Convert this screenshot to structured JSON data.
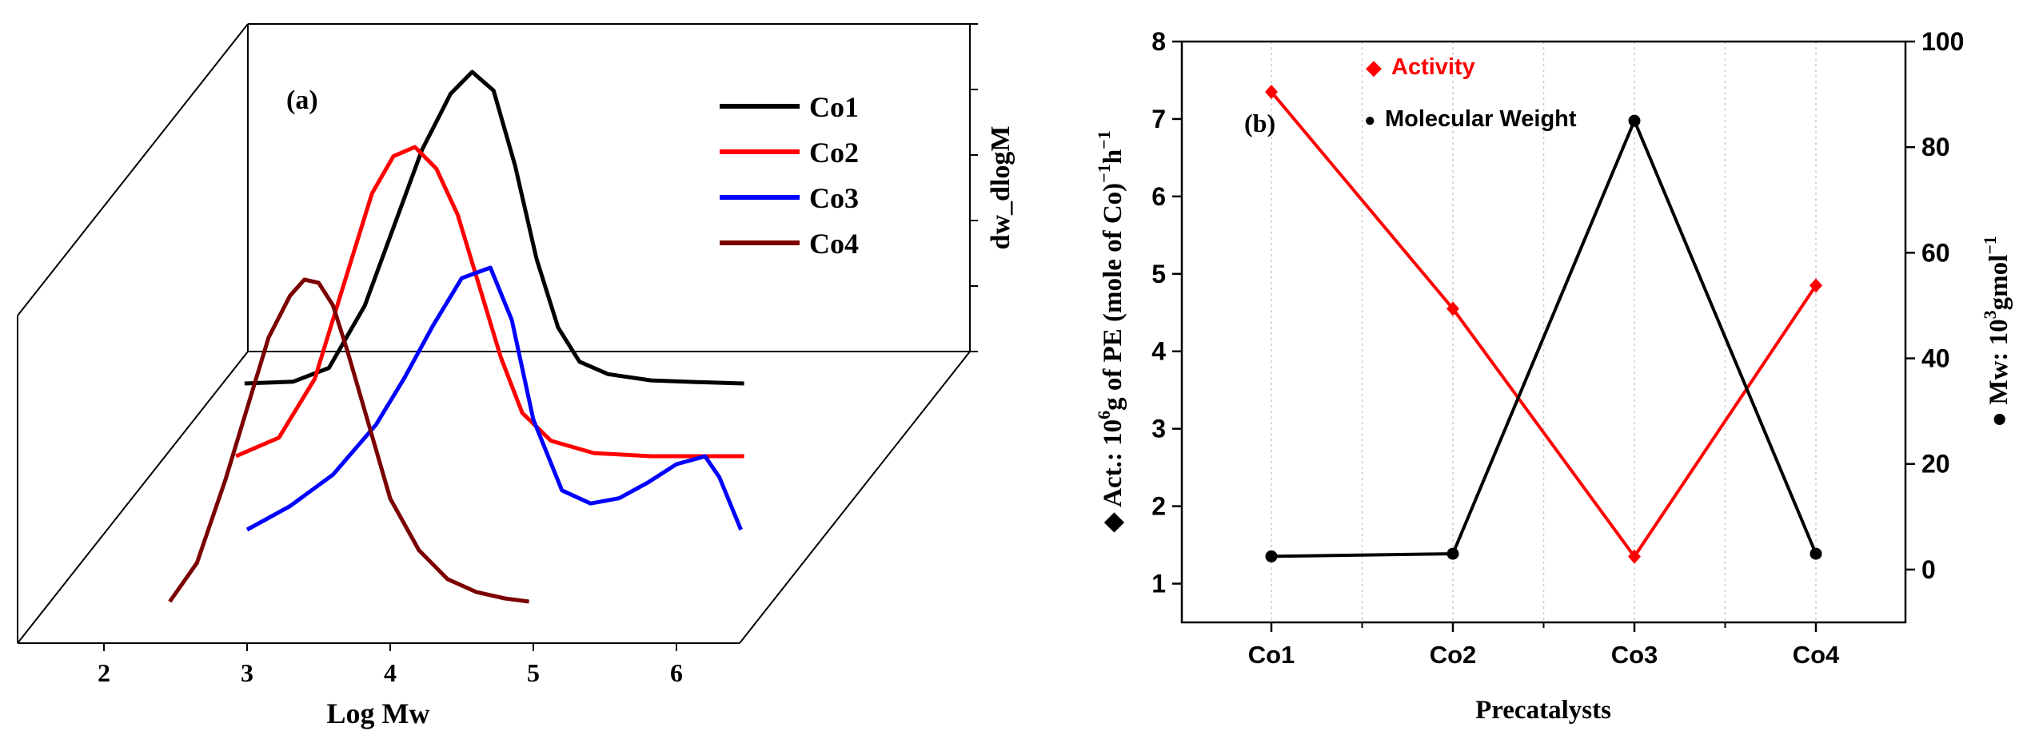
{
  "chart_data": [
    {
      "type": "line",
      "panel_label": "(a)",
      "xlabel": "Log Mw",
      "zlabel": "dw_dlogM",
      "x_ticks": [
        2,
        3,
        4,
        5,
        6
      ],
      "xlim": [
        1.35,
        6.5
      ],
      "series": [
        {
          "name": "Co1",
          "color": "#000000",
          "x": [
            2.96,
            3.3,
            3.55,
            3.8,
            4.0,
            4.2,
            4.4,
            4.55,
            4.7,
            4.85,
            5.0,
            5.15,
            5.3,
            5.5,
            5.8,
            6.1,
            6.45
          ],
          "y": [
            0.0,
            0.006,
            0.05,
            0.25,
            0.5,
            0.75,
            0.93,
            1.0,
            0.94,
            0.7,
            0.4,
            0.18,
            0.07,
            0.03,
            0.01,
            0.005,
            0.0
          ]
        },
        {
          "name": "Co2",
          "color": "#ff0000",
          "x": [
            2.9,
            3.2,
            3.45,
            3.65,
            3.85,
            4.0,
            4.15,
            4.3,
            4.45,
            4.6,
            4.75,
            4.9,
            5.1,
            5.4,
            5.8,
            6.2,
            6.45
          ],
          "y": [
            0.0,
            0.06,
            0.25,
            0.55,
            0.85,
            0.97,
            1.0,
            0.93,
            0.78,
            0.55,
            0.32,
            0.14,
            0.05,
            0.01,
            0.0,
            0.0,
            0.0
          ]
        },
        {
          "name": "Co3",
          "color": "#0000ff",
          "x": [
            3.0,
            3.3,
            3.6,
            3.9,
            4.1,
            4.3,
            4.5,
            4.7,
            4.85,
            5.0,
            5.2,
            5.4,
            5.6,
            5.8,
            6.0,
            6.2,
            6.3,
            6.45
          ],
          "y": [
            0.0,
            0.09,
            0.21,
            0.4,
            0.58,
            0.78,
            0.96,
            1.0,
            0.8,
            0.42,
            0.15,
            0.1,
            0.12,
            0.18,
            0.25,
            0.28,
            0.2,
            0.0
          ]
        },
        {
          "name": "Co4",
          "color": "#7b0000",
          "x": [
            2.46,
            2.65,
            2.85,
            3.0,
            3.15,
            3.3,
            3.4,
            3.5,
            3.6,
            3.7,
            3.85,
            4.0,
            4.2,
            4.4,
            4.6,
            4.8,
            4.97
          ],
          "y": [
            0.0,
            0.12,
            0.38,
            0.6,
            0.82,
            0.95,
            1.0,
            0.99,
            0.92,
            0.78,
            0.55,
            0.32,
            0.16,
            0.07,
            0.03,
            0.01,
            0.0
          ]
        }
      ]
    },
    {
      "type": "line",
      "panel_label": "(b)",
      "xlabel": "Precatalysts",
      "categories": [
        "Co1",
        "Co2",
        "Co3",
        "Co4"
      ],
      "y_left": {
        "label_parts": [
          "◆ Act.: 10",
          "6",
          "g of PE (mole of Co)",
          "−1",
          "h",
          "−1"
        ],
        "ticks": [
          1,
          2,
          3,
          4,
          5,
          6,
          7,
          8
        ],
        "ylim": [
          0.5,
          8
        ]
      },
      "y_right": {
        "label_parts": [
          "● Mw: 10",
          "3",
          "gmol",
          "−1"
        ],
        "ticks": [
          0,
          20,
          40,
          60,
          80,
          100
        ],
        "ylim": [
          -10,
          100
        ]
      },
      "series": [
        {
          "name": "Activity",
          "marker": "◆",
          "color": "#ff0000",
          "axis": "left",
          "values": [
            7.35,
            4.55,
            1.35,
            4.85
          ]
        },
        {
          "name": "Molecular Weight",
          "marker": "●",
          "color": "#000000",
          "axis": "right",
          "values": [
            2.5,
            3.0,
            85,
            3.0
          ]
        }
      ]
    }
  ]
}
